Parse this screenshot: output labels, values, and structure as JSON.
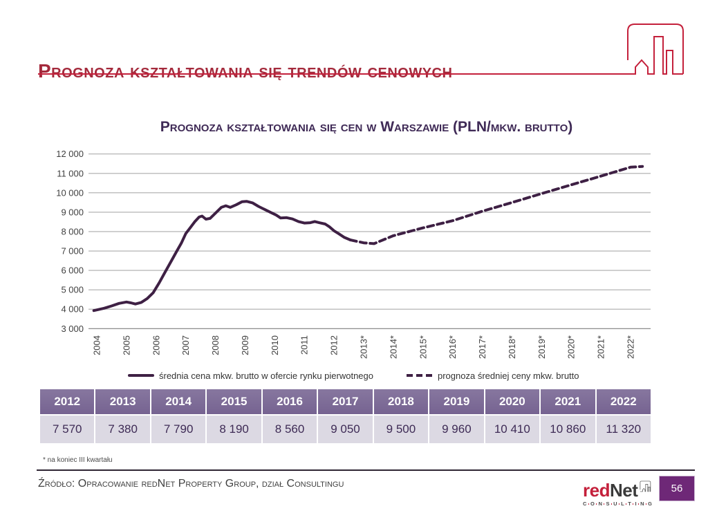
{
  "slide": {
    "title": "Prognoza kształtowania się trendów cenowych",
    "page_number": "56"
  },
  "chart": {
    "title": "Prognoza kształtowania się cen w Warszawie (PLN/mkw. brutto)",
    "legend": [
      {
        "label": "średnia cena mkw. brutto w ofercie rynku pierwotnego",
        "style": "solid"
      },
      {
        "label": "prognoza średniej ceny mkw. brutto",
        "style": "dashed"
      }
    ]
  },
  "chart_data": {
    "type": "line",
    "title": "Prognoza kształtowania się cen w Warszawie (PLN/mkw. brutto)",
    "ylabel": "",
    "xlabel": "",
    "grid": true,
    "legend_position": "bottom",
    "ylim": [
      3000,
      12000
    ],
    "y_tick_values": [
      12000,
      11000,
      10000,
      9000,
      8000,
      7000,
      6000,
      5000,
      4000,
      3000
    ],
    "y_tick_labels": [
      "12 000",
      "11 000",
      "10 000",
      "9 000",
      "8 000",
      "7 000",
      "6 000",
      "5 000",
      "4 000",
      "3 000"
    ],
    "x_tick_labels": [
      "2004",
      "2005",
      "2006",
      "2007",
      "2008",
      "2009",
      "2010",
      "2011",
      "2012",
      "2013*",
      "2014*",
      "2015*",
      "2016*",
      "2017*",
      "2018*",
      "2019*",
      "2020*",
      "2021*",
      "2022*"
    ],
    "x_tick_start_year": 2004,
    "series": [
      {
        "name": "średnia cena mkw. brutto w ofercie rynku pierwotnego",
        "style": "solid",
        "points": [
          [
            2003.9,
            3930
          ],
          [
            2004.25,
            4050
          ],
          [
            2004.5,
            4170
          ],
          [
            2004.75,
            4300
          ],
          [
            2005.0,
            4370
          ],
          [
            2005.15,
            4330
          ],
          [
            2005.3,
            4270
          ],
          [
            2005.5,
            4350
          ],
          [
            2005.7,
            4550
          ],
          [
            2005.9,
            4850
          ],
          [
            2006.1,
            5350
          ],
          [
            2006.3,
            5900
          ],
          [
            2006.5,
            6450
          ],
          [
            2006.7,
            7000
          ],
          [
            2006.85,
            7400
          ],
          [
            2007.0,
            7900
          ],
          [
            2007.15,
            8200
          ],
          [
            2007.3,
            8500
          ],
          [
            2007.45,
            8750
          ],
          [
            2007.55,
            8800
          ],
          [
            2007.68,
            8640
          ],
          [
            2007.82,
            8680
          ],
          [
            2008.0,
            8950
          ],
          [
            2008.2,
            9250
          ],
          [
            2008.35,
            9330
          ],
          [
            2008.5,
            9250
          ],
          [
            2008.7,
            9380
          ],
          [
            2008.9,
            9540
          ],
          [
            2009.05,
            9560
          ],
          [
            2009.25,
            9480
          ],
          [
            2009.45,
            9300
          ],
          [
            2009.65,
            9150
          ],
          [
            2009.85,
            9000
          ],
          [
            2010.05,
            8850
          ],
          [
            2010.2,
            8700
          ],
          [
            2010.4,
            8720
          ],
          [
            2010.6,
            8650
          ],
          [
            2010.8,
            8520
          ],
          [
            2011.0,
            8440
          ],
          [
            2011.2,
            8460
          ],
          [
            2011.35,
            8520
          ],
          [
            2011.5,
            8460
          ],
          [
            2011.7,
            8390
          ],
          [
            2011.85,
            8240
          ],
          [
            2012.0,
            8040
          ],
          [
            2012.15,
            7900
          ],
          [
            2012.35,
            7700
          ],
          [
            2012.55,
            7570
          ]
        ]
      },
      {
        "name": "prognoza średniej ceny mkw. brutto",
        "style": "dashed",
        "points": [
          [
            2012.55,
            7570
          ],
          [
            2013.0,
            7420
          ],
          [
            2013.35,
            7380
          ],
          [
            2014.0,
            7790
          ],
          [
            2015.0,
            8190
          ],
          [
            2016.0,
            8560
          ],
          [
            2017.0,
            9050
          ],
          [
            2018.0,
            9500
          ],
          [
            2019.0,
            9960
          ],
          [
            2020.0,
            10410
          ],
          [
            2021.0,
            10860
          ],
          [
            2022.0,
            11320
          ],
          [
            2022.4,
            11360
          ]
        ]
      }
    ]
  },
  "table": {
    "years": [
      "2012",
      "2013",
      "2014",
      "2015",
      "2016",
      "2017",
      "2018",
      "2019",
      "2020",
      "2021",
      "2022"
    ],
    "values": [
      "7 570",
      "7 380",
      "7 790",
      "8 190",
      "8 560",
      "9 050",
      "9 500",
      "9 960",
      "10 410",
      "10 860",
      "11 320"
    ]
  },
  "footnote": "* na koniec III kwartału",
  "source": "Źródło: Opracowanie redNet Property Group, dział Consultingu",
  "footer_logo": {
    "brand_red": "red",
    "brand_dark": "Net",
    "subtext": "CONSULTING"
  },
  "colors": {
    "title_red": "#A42A3C",
    "accent_red": "#C4203B",
    "chart_title_purple": "#3F2A56",
    "line_purple": "#3E2044",
    "grid_gray": "#ABABAB",
    "axis_gray": "#7f7f7f",
    "tick_text": "#3f3f3f",
    "table_header_purple": "#7C6B99",
    "table_row_lavender": "#DCD9E3",
    "page_box_purple": "#6E2877"
  }
}
